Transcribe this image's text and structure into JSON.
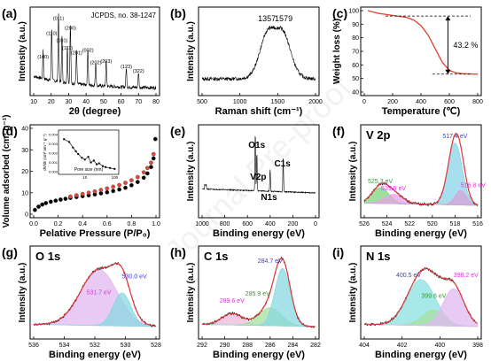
{
  "watermark": "Journal Pre-proof",
  "chart_data": [
    {
      "id": "a",
      "type": "line",
      "panel_label": "(a)",
      "xlabel": "2θ (degree)",
      "ylabel": "Intensity (a.u.)",
      "xlim": [
        10,
        80
      ],
      "x_ticks": [
        "10",
        "20",
        "30",
        "40",
        "50",
        "60",
        "70",
        "80"
      ],
      "annotations": [
        "JCPDS, no. 38-1247"
      ],
      "peaks": [
        {
          "label": "(100)",
          "x": 15.4,
          "y": 0.42
        },
        {
          "label": "(110)",
          "x": 20.3,
          "y": 0.76
        },
        {
          "label": "(011)",
          "x": 24.2,
          "y": 0.98
        },
        {
          "label": "(101)",
          "x": 26.2,
          "y": 0.66
        },
        {
          "label": "(111)",
          "x": 29.3,
          "y": 0.55
        },
        {
          "label": "(200)",
          "x": 31.0,
          "y": 0.84
        },
        {
          "label": "(201)",
          "x": 34.5,
          "y": 0.48
        },
        {
          "label": "(002)",
          "x": 41.0,
          "y": 0.52
        },
        {
          "label": "(202)",
          "x": 45.5,
          "y": 0.34
        },
        {
          "label": "(203)",
          "x": 51.5,
          "y": 0.36
        },
        {
          "label": "(123)",
          "x": 63.0,
          "y": 0.28
        },
        {
          "label": "(322)",
          "x": 70.0,
          "y": 0.22
        }
      ]
    },
    {
      "id": "b",
      "type": "line",
      "panel_label": "(b)",
      "xlabel": "Raman shift (cm⁻¹)",
      "ylabel": "Intensity (a.u.)",
      "xlim": [
        500,
        2000
      ],
      "x_ticks": [
        "500",
        "1000",
        "1500",
        "2000"
      ],
      "annotations": [
        "1357",
        "1579"
      ],
      "peaks": [
        {
          "label": "1357",
          "x": 1357,
          "y": 0.86
        },
        {
          "label": "1579",
          "x": 1579,
          "y": 0.84
        }
      ]
    },
    {
      "id": "c",
      "type": "line",
      "panel_label": "(c)",
      "xlabel": "Temperature (℃)",
      "ylabel": "Weight loss (%)",
      "xlim": [
        0,
        800
      ],
      "ylim": [
        40,
        100
      ],
      "x_ticks": [
        "0",
        "200",
        "400",
        "600",
        "800"
      ],
      "y_ticks": [
        "40",
        "50",
        "60",
        "70",
        "80",
        "90",
        "100"
      ],
      "annotations": [
        "43.2 %"
      ],
      "series": [
        {
          "x": [
            25,
            100,
            200,
            300,
            350,
            400,
            450,
            500,
            550,
            600,
            650,
            700,
            800
          ],
          "y": [
            100,
            98,
            96.5,
            95,
            93,
            89,
            82,
            72,
            62,
            56,
            54,
            53.5,
            53.2
          ]
        }
      ]
    },
    {
      "id": "d",
      "type": "scatter",
      "panel_label": "(d)",
      "xlabel": "Pelative Pressure (P/P₀)",
      "ylabel": "Volume adsorbed (cm³ g⁻¹)",
      "xlim": [
        0,
        1
      ],
      "ylim": [
        0,
        40
      ],
      "x_ticks": [
        "0.0",
        "0.2",
        "0.4",
        "0.6",
        "0.8",
        "1.0"
      ],
      "y_ticks": [
        "0",
        "10",
        "20",
        "30",
        "40"
      ],
      "series": [
        {
          "name": "adsorption",
          "color": "#000000",
          "x": [
            0.01,
            0.04,
            0.07,
            0.1,
            0.14,
            0.18,
            0.22,
            0.26,
            0.3,
            0.35,
            0.4,
            0.45,
            0.5,
            0.55,
            0.6,
            0.65,
            0.7,
            0.75,
            0.8,
            0.85,
            0.9,
            0.93,
            0.96,
            0.98,
            0.995
          ],
          "y": [
            2,
            3.5,
            4.5,
            5.2,
            5.8,
            6.3,
            6.8,
            7.2,
            7.6,
            8,
            8.4,
            8.8,
            9.2,
            9.7,
            10.2,
            10.8,
            11.5,
            12.3,
            13.5,
            15,
            17,
            19,
            22,
            26,
            35
          ]
        },
        {
          "name": "desorption",
          "color": "#e0463a",
          "x": [
            0.3,
            0.35,
            0.4,
            0.45,
            0.5,
            0.55,
            0.6,
            0.65,
            0.7,
            0.75,
            0.8,
            0.85,
            0.9,
            0.93,
            0.96,
            0.98
          ],
          "y": [
            8.2,
            8.8,
            9.4,
            10,
            10.6,
            11.3,
            12,
            12.8,
            13.6,
            14.6,
            15.8,
            17.3,
            19.5,
            21.5,
            24,
            28
          ]
        }
      ],
      "inset": {
        "xlabel": "Pore size (nm)",
        "ylabel": "dV/dr (cm³ nm⁻¹ g⁻¹)",
        "x_ticks": [
          "10",
          "100"
        ],
        "y_ticks": [
          "0.000",
          "0.001",
          "0.002",
          "0.003",
          "0.004"
        ],
        "series": [
          {
            "x": [
              2,
              3,
              4,
              5,
              6,
              8,
              10,
              13,
              16,
              20,
              25,
              30,
              40,
              50,
              70,
              100
            ],
            "y": [
              0.0035,
              0.0032,
              0.0026,
              0.0022,
              0.0019,
              0.0015,
              0.0013,
              0.0016,
              0.001,
              0.0012,
              0.0008,
              0.0009,
              0.0006,
              0.0005,
              0.0004,
              0.0003
            ]
          }
        ]
      }
    },
    {
      "id": "e",
      "type": "line",
      "panel_label": "(e)",
      "xlabel": "Binding energy (eV)",
      "ylabel": "Intensity (a.u.)",
      "xlim": [
        1000,
        0
      ],
      "x_ticks": [
        "1000",
        "800",
        "600",
        "400",
        "200",
        "0"
      ],
      "annotations": [
        "O1s",
        "V2p",
        "N1s",
        "C1s"
      ],
      "peaks": [
        {
          "label": "O1s",
          "x": 531,
          "y": 0.95
        },
        {
          "label": "V2p",
          "x": 517,
          "y": 0.62
        },
        {
          "label": "N1s",
          "x": 400,
          "y": 0.36
        },
        {
          "label": "C1s",
          "x": 285,
          "y": 0.58
        }
      ]
    },
    {
      "id": "f",
      "type": "line",
      "panel_label": "(f)",
      "title": "V 2p",
      "xlabel": "Binding energy (eV)",
      "ylabel": "Intensity (a.u.)",
      "xlim": [
        527,
        515
      ],
      "x_ticks": [
        "526",
        "524",
        "522",
        "520",
        "518",
        "516"
      ],
      "peaks": [
        {
          "label": "525.3 eV",
          "center": 525.3,
          "height": 0.22,
          "width": 0.9,
          "color": "#7fd67f",
          "label_color": "#2e9e2e"
        },
        {
          "label": "523.9 eV",
          "center": 523.9,
          "height": 0.13,
          "width": 1.0,
          "color": "#e6a3e6",
          "label_color": "#d040d0"
        },
        {
          "label": "517.4 eV",
          "center": 517.4,
          "height": 0.86,
          "width": 0.75,
          "color": "#8ad4e8",
          "label_color": "#3d3dd0"
        },
        {
          "label": "516.8 eV",
          "center": 516.8,
          "height": 0.2,
          "width": 0.6,
          "color": "#d7a3d7",
          "label_color": "#d040d0"
        }
      ]
    },
    {
      "id": "g",
      "type": "line",
      "panel_label": "(g)",
      "title": "O 1s",
      "xlabel": "Binding energy (eV)",
      "ylabel": "Intensity (a.u.)",
      "xlim": [
        536.5,
        527.5
      ],
      "x_ticks": [
        "536",
        "534",
        "532",
        "530",
        "528"
      ],
      "peaks": [
        {
          "label": "531.7 eV",
          "center": 531.7,
          "height": 0.78,
          "width": 1.35,
          "color": "#e0b8f0",
          "label_color": "#d040d0"
        },
        {
          "label": "530.0 eV",
          "center": 530.0,
          "height": 0.46,
          "width": 0.65,
          "color": "#8ad8e0",
          "label_color": "#3d3dd0"
        }
      ]
    },
    {
      "id": "h",
      "type": "line",
      "panel_label": "(h)",
      "title": "C 1s",
      "xlabel": "Binding energy (eV)",
      "ylabel": "Intensity (a.u.)",
      "xlim": [
        292.5,
        281.5
      ],
      "x_ticks": [
        "292",
        "290",
        "288",
        "286",
        "284",
        "282"
      ],
      "peaks": [
        {
          "label": "289.6 eV",
          "center": 289.6,
          "height": 0.16,
          "width": 1.0,
          "color": "#f0b8d8",
          "label_color": "#d040d0"
        },
        {
          "label": "285.9 eV",
          "center": 285.9,
          "height": 0.25,
          "width": 1.1,
          "color": "#a6e0a0",
          "label_color": "#2e9e2e"
        },
        {
          "label": "284.7 eV",
          "center": 284.7,
          "height": 0.8,
          "width": 0.75,
          "color": "#8ad8e0",
          "label_color": "#3d3dd0"
        }
      ]
    },
    {
      "id": "i",
      "type": "line",
      "panel_label": "(i)",
      "title": "N 1s",
      "xlabel": "Binding energy (eV)",
      "ylabel": "Intensity (a.u.)",
      "xlim": [
        404.5,
        396.5
      ],
      "x_ticks": [
        "404",
        "402",
        "400",
        "398"
      ],
      "peaks": [
        {
          "label": "400.5 eV",
          "center": 400.5,
          "height": 0.64,
          "width": 1.0,
          "color": "#8ae0e0",
          "label_color": "#3d3dd0"
        },
        {
          "label": "399.6 eV",
          "center": 399.6,
          "height": 0.22,
          "width": 0.8,
          "color": "#a6e0a0",
          "label_color": "#2e9e2e"
        },
        {
          "label": "398.2 eV",
          "center": 398.2,
          "height": 0.52,
          "width": 0.75,
          "color": "#e0b8f0",
          "label_color": "#d040d0"
        }
      ]
    }
  ]
}
